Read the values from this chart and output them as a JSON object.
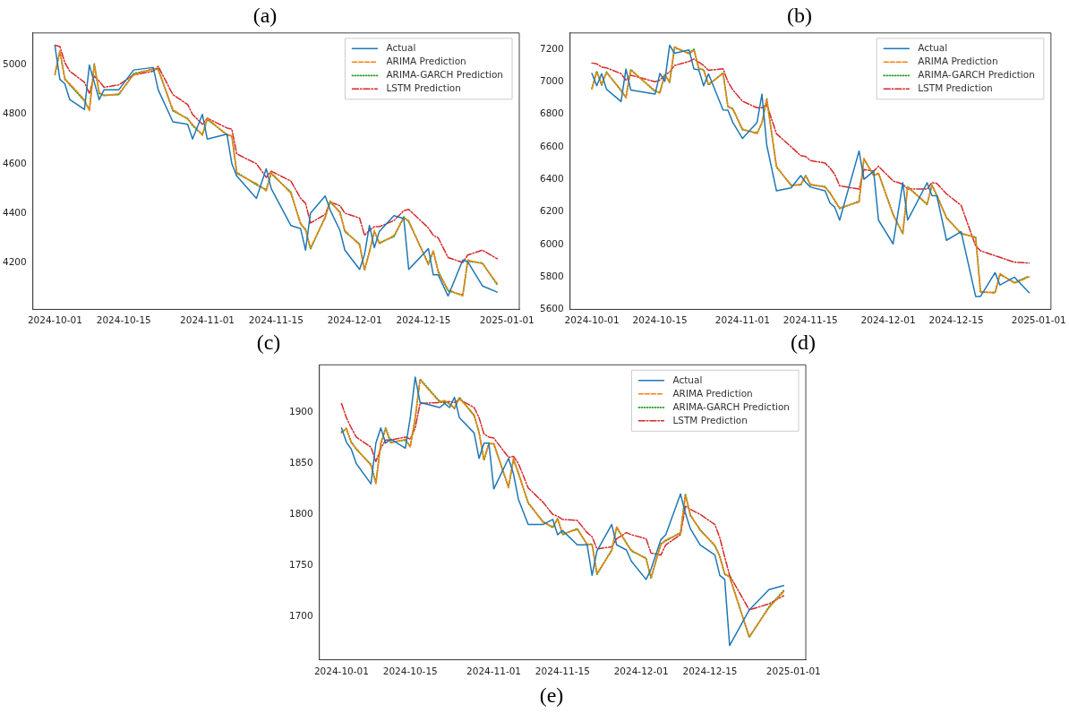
{
  "chart_data": [
    {
      "type": "line",
      "title": "(a)",
      "annotations": [
        "(c)"
      ],
      "legend": "top right",
      "grid": false,
      "xlim": [
        "2024-09-26T12:00",
        "2025-01-03T12:00"
      ],
      "xticks": [
        "2024-10-01",
        "2024-10-15",
        "2024-11-01",
        "2024-11-15",
        "2024-12-01",
        "2024-12-15",
        "2025-01-01"
      ],
      "ylim": [
        4010,
        5130
      ],
      "yticks": [
        4200,
        4400,
        4600,
        4800,
        5000
      ],
      "x": [
        "2024-10-01",
        "2024-10-02",
        "2024-10-03",
        "2024-10-04",
        "2024-10-07",
        "2024-10-08",
        "2024-10-09",
        "2024-10-10",
        "2024-10-11",
        "2024-10-14",
        "2024-10-17",
        "2024-10-21",
        "2024-10-22",
        "2024-10-25",
        "2024-10-28",
        "2024-10-29",
        "2024-10-31",
        "2024-11-01",
        "2024-11-05",
        "2024-11-06",
        "2024-11-07",
        "2024-11-11",
        "2024-11-13",
        "2024-11-14",
        "2024-11-18",
        "2024-11-20",
        "2024-11-21",
        "2024-11-22",
        "2024-11-25",
        "2024-11-26",
        "2024-11-28",
        "2024-11-29",
        "2024-12-02",
        "2024-12-03",
        "2024-12-04",
        "2024-12-05",
        "2024-12-06",
        "2024-12-09",
        "2024-12-11",
        "2024-12-12",
        "2024-12-16",
        "2024-12-17",
        "2024-12-18",
        "2024-12-20",
        "2024-12-23",
        "2024-12-24",
        "2024-12-27",
        "2024-12-30"
      ],
      "series": [
        {
          "name": "Actual",
          "color": "#1f77b4",
          "line_style": "solid",
          "values": [
            5076,
            4942,
            4924,
            4860,
            4820,
            5000,
            4930,
            4860,
            4900,
            4900,
            4980,
            4990,
            4900,
            4770,
            4760,
            4700,
            4800,
            4700,
            4720,
            4600,
            4550,
            4460,
            4580,
            4500,
            4350,
            4337,
            4250,
            4400,
            4470,
            4413,
            4330,
            4250,
            4172,
            4232,
            4350,
            4260,
            4325,
            4390,
            4378,
            4172,
            4256,
            4150,
            4150,
            4064,
            4210,
            4203,
            4105,
            4080
          ]
        },
        {
          "name": "ARIMA Prediction",
          "color": "#ff7f0e",
          "line_style": "dashed",
          "values": [
            4965,
            5060,
            4940,
            4925,
            4860,
            4815,
            5000,
            4890,
            4875,
            4884,
            4960,
            4985,
            4980,
            4820,
            4780,
            4760,
            4715,
            4785,
            4715,
            4715,
            4560,
            4520,
            4490,
            4565,
            4480,
            4360,
            4330,
            4260,
            4380,
            4450,
            4400,
            4330,
            4270,
            4172,
            4240,
            4330,
            4275,
            4310,
            4380,
            4370,
            4190,
            4250,
            4160,
            4090,
            4064,
            4210,
            4195,
            4115
          ]
        },
        {
          "name": "ARIMA-GARCH Prediction",
          "color": "#2ca02c",
          "line_style": "dotted",
          "values": [
            4962,
            5055,
            4945,
            4920,
            4855,
            4818,
            5004,
            4885,
            4878,
            4880,
            4965,
            4983,
            4985,
            4815,
            4783,
            4755,
            4718,
            4780,
            4718,
            4712,
            4565,
            4515,
            4495,
            4560,
            4485,
            4355,
            4335,
            4255,
            4385,
            4445,
            4405,
            4325,
            4275,
            4168,
            4245,
            4325,
            4280,
            4305,
            4385,
            4365,
            4195,
            4245,
            4165,
            4085,
            4068,
            4205,
            4198,
            4110
          ]
        },
        {
          "name": "LSTM Prediction",
          "color": "#d62728",
          "line_style": "dashdot",
          "values": [
            5080,
            5075,
            5010,
            4975,
            4930,
            4885,
            4955,
            4935,
            4910,
            4920,
            4960,
            4975,
            4995,
            4880,
            4840,
            4800,
            4760,
            4785,
            4745,
            4740,
            4640,
            4600,
            4545,
            4570,
            4530,
            4460,
            4440,
            4360,
            4395,
            4445,
            4430,
            4400,
            4380,
            4310,
            4330,
            4345,
            4345,
            4370,
            4410,
            4415,
            4340,
            4310,
            4300,
            4220,
            4200,
            4230,
            4250,
            4215
          ]
        }
      ]
    },
    {
      "type": "line",
      "title": "(b)",
      "annotations": [
        "(d)"
      ],
      "legend": "top right",
      "grid": false,
      "xlim": [
        "2024-09-26T12:00",
        "2025-01-03T12:00"
      ],
      "xticks": [
        "2024-10-01",
        "2024-10-15",
        "2024-11-01",
        "2024-11-15",
        "2024-12-01",
        "2024-12-15",
        "2025-01-01"
      ],
      "ylim": [
        5600,
        7300
      ],
      "yticks": [
        5600,
        5800,
        6000,
        6200,
        6400,
        6600,
        6800,
        7000,
        7200
      ],
      "x": [
        "2024-10-01",
        "2024-10-02",
        "2024-10-03",
        "2024-10-04",
        "2024-10-07",
        "2024-10-08",
        "2024-10-09",
        "2024-10-14",
        "2024-10-15",
        "2024-10-16",
        "2024-10-17",
        "2024-10-18",
        "2024-10-21",
        "2024-10-22",
        "2024-10-23",
        "2024-10-24",
        "2024-10-25",
        "2024-10-28",
        "2024-10-29",
        "2024-10-30",
        "2024-11-01",
        "2024-11-04",
        "2024-11-05",
        "2024-11-06",
        "2024-11-08",
        "2024-11-11",
        "2024-11-13",
        "2024-11-14",
        "2024-11-15",
        "2024-11-18",
        "2024-11-19",
        "2024-11-20",
        "2024-11-21",
        "2024-11-25",
        "2024-11-26",
        "2024-11-28",
        "2024-11-29",
        "2024-12-02",
        "2024-12-04",
        "2024-12-05",
        "2024-12-09",
        "2024-12-10",
        "2024-12-11",
        "2024-12-13",
        "2024-12-16",
        "2024-12-19",
        "2024-12-20",
        "2024-12-23",
        "2024-12-24",
        "2024-12-27",
        "2024-12-30"
      ],
      "series": [
        {
          "name": "Actual",
          "color": "#1f77b4",
          "line_style": "solid",
          "values": [
            7051,
            6975,
            7050,
            6954,
            6878,
            7078,
            6949,
            6924,
            7051,
            7002,
            7225,
            7175,
            7196,
            7078,
            7073,
            6975,
            7048,
            6827,
            6825,
            6750,
            6651,
            6750,
            6924,
            6609,
            6329,
            6347,
            6423,
            6382,
            6352,
            6329,
            6255,
            6228,
            6149,
            6574,
            6400,
            6450,
            6149,
            6003,
            6379,
            6149,
            6379,
            6299,
            6299,
            6025,
            6078,
            5680,
            5680,
            5826,
            5750,
            5798,
            5703
          ]
        },
        {
          "name": "ARIMA Prediction",
          "color": "#ff7f0e",
          "line_style": "dashed",
          "values": [
            6955,
            7060,
            6985,
            7055,
            6950,
            6900,
            7070,
            6945,
            6930,
            7040,
            7000,
            7215,
            7170,
            7195,
            7085,
            7070,
            6985,
            7050,
            6850,
            6830,
            6710,
            6680,
            6750,
            6890,
            6480,
            6360,
            6370,
            6420,
            6370,
            6350,
            6320,
            6265,
            6225,
            6260,
            6530,
            6420,
            6440,
            6180,
            6070,
            6350,
            6250,
            6360,
            6305,
            6160,
            6070,
            6040,
            5710,
            5700,
            5820,
            5760,
            5800
          ]
        },
        {
          "name": "ARIMA-GARCH Prediction",
          "color": "#2ca02c",
          "line_style": "dotted",
          "values": [
            6960,
            7065,
            6980,
            7060,
            6945,
            6905,
            7075,
            6940,
            6935,
            7045,
            6995,
            7210,
            7175,
            7200,
            7080,
            7075,
            6980,
            7055,
            6845,
            6835,
            6705,
            6685,
            6745,
            6895,
            6475,
            6365,
            6365,
            6425,
            6365,
            6355,
            6315,
            6270,
            6220,
            6265,
            6525,
            6425,
            6435,
            6185,
            6065,
            6355,
            6245,
            6365,
            6300,
            6165,
            6065,
            6045,
            5705,
            5705,
            5815,
            5765,
            5805
          ]
        },
        {
          "name": "LSTM Prediction",
          "color": "#d62728",
          "line_style": "dashdot",
          "values": [
            7115,
            7110,
            7090,
            7085,
            7050,
            7010,
            7040,
            7000,
            7010,
            7040,
            7060,
            7100,
            7125,
            7140,
            7120,
            7100,
            7070,
            7080,
            7000,
            6950,
            6880,
            6840,
            6840,
            6860,
            6680,
            6600,
            6545,
            6540,
            6515,
            6500,
            6470,
            6430,
            6360,
            6340,
            6460,
            6450,
            6480,
            6390,
            6370,
            6340,
            6340,
            6380,
            6375,
            6310,
            6240,
            5990,
            5960,
            5930,
            5920,
            5890,
            5885
          ]
        }
      ]
    },
    {
      "type": "line",
      "title": "(e)",
      "legend": "top right",
      "grid": false,
      "xlim": [
        "2024-09-26T12:00",
        "2025-01-03T12:00"
      ],
      "xticks": [
        "2024-10-01",
        "2024-10-15",
        "2024-11-01",
        "2024-11-15",
        "2024-12-01",
        "2024-12-15",
        "2025-01-01"
      ],
      "ylim": [
        1657,
        1947
      ],
      "yticks": [
        1700,
        1750,
        1800,
        1850,
        1900
      ],
      "x": [
        "2024-10-01",
        "2024-10-02",
        "2024-10-03",
        "2024-10-04",
        "2024-10-07",
        "2024-10-08",
        "2024-10-09",
        "2024-10-10",
        "2024-10-11",
        "2024-10-14",
        "2024-10-15",
        "2024-10-16",
        "2024-10-17",
        "2024-10-21",
        "2024-10-22",
        "2024-10-23",
        "2024-10-24",
        "2024-10-25",
        "2024-10-28",
        "2024-10-29",
        "2024-10-30",
        "2024-10-31",
        "2024-11-01",
        "2024-11-04",
        "2024-11-05",
        "2024-11-06",
        "2024-11-08",
        "2024-11-11",
        "2024-11-13",
        "2024-11-14",
        "2024-11-15",
        "2024-11-18",
        "2024-11-20",
        "2024-11-21",
        "2024-11-22",
        "2024-11-25",
        "2024-11-26",
        "2024-11-28",
        "2024-11-29",
        "2024-12-02",
        "2024-12-03",
        "2024-12-05",
        "2024-12-06",
        "2024-12-09",
        "2024-12-10",
        "2024-12-11",
        "2024-12-13",
        "2024-12-16",
        "2024-12-17",
        "2024-12-18",
        "2024-12-19",
        "2024-12-23",
        "2024-12-27",
        "2024-12-30"
      ],
      "series": [
        {
          "name": "Actual",
          "color": "#1f77b4",
          "line_style": "solid",
          "values": [
            1885,
            1871,
            1864,
            1850,
            1830,
            1870,
            1885,
            1870,
            1874,
            1865,
            1895,
            1935,
            1910,
            1905,
            1909,
            1905,
            1915,
            1895,
            1880,
            1855,
            1870,
            1870,
            1825,
            1855,
            1840,
            1815,
            1790,
            1790,
            1795,
            1780,
            1784,
            1770,
            1770,
            1740,
            1764,
            1790,
            1770,
            1765,
            1754,
            1736,
            1746,
            1775,
            1780,
            1820,
            1801,
            1786,
            1770,
            1760,
            1740,
            1736,
            1671,
            1706,
            1726,
            1730
          ]
        },
        {
          "name": "ARIMA Prediction",
          "color": "#ff7f0e",
          "line_style": "dashed",
          "values": [
            1880,
            1885,
            1870,
            1865,
            1848,
            1830,
            1870,
            1884,
            1870,
            1874,
            1866,
            1895,
            1932,
            1910,
            1912,
            1908,
            1905,
            1914,
            1898,
            1880,
            1854,
            1869,
            1870,
            1826,
            1855,
            1840,
            1812,
            1792,
            1788,
            1795,
            1781,
            1785,
            1771,
            1770,
            1742,
            1764,
            1788,
            1771,
            1765,
            1756,
            1738,
            1770,
            1775,
            1781,
            1819,
            1800,
            1784,
            1770,
            1758,
            1742,
            1738,
            1680,
            1708,
            1724
          ]
        },
        {
          "name": "ARIMA-GARCH Prediction",
          "color": "#2ca02c",
          "line_style": "dotted",
          "values": [
            1881,
            1884,
            1871,
            1864,
            1849,
            1831,
            1869,
            1885,
            1871,
            1873,
            1867,
            1894,
            1933,
            1911,
            1911,
            1909,
            1904,
            1915,
            1897,
            1881,
            1853,
            1870,
            1869,
            1827,
            1854,
            1841,
            1811,
            1793,
            1787,
            1796,
            1780,
            1786,
            1770,
            1771,
            1741,
            1765,
            1787,
            1772,
            1764,
            1757,
            1737,
            1771,
            1774,
            1782,
            1820,
            1799,
            1785,
            1769,
            1759,
            1741,
            1739,
            1679,
            1709,
            1725
          ]
        },
        {
          "name": "LSTM Prediction",
          "color": "#d62728",
          "line_style": "dashdot",
          "values": [
            1909,
            1895,
            1885,
            1876,
            1866,
            1852,
            1865,
            1873,
            1873,
            1876,
            1874,
            1885,
            1909,
            1910,
            1910,
            1911,
            1910,
            1913,
            1905,
            1895,
            1879,
            1876,
            1875,
            1856,
            1857,
            1850,
            1826,
            1812,
            1800,
            1798,
            1795,
            1794,
            1782,
            1778,
            1766,
            1768,
            1776,
            1782,
            1780,
            1776,
            1762,
            1760,
            1770,
            1780,
            1808,
            1805,
            1800,
            1790,
            1777,
            1758,
            1740,
            1706,
            1712,
            1720
          ]
        }
      ]
    }
  ]
}
